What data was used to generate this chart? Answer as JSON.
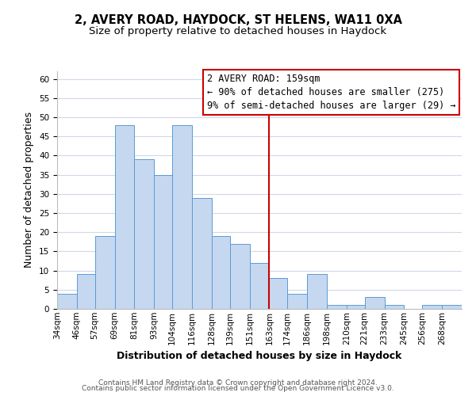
{
  "title_line1": "2, AVERY ROAD, HAYDOCK, ST HELENS, WA11 0XA",
  "title_line2": "Size of property relative to detached houses in Haydock",
  "xlabel": "Distribution of detached houses by size in Haydock",
  "ylabel": "Number of detached properties",
  "bar_edges": [
    34,
    46,
    57,
    69,
    81,
    93,
    104,
    116,
    128,
    139,
    151,
    163,
    174,
    186,
    198,
    210,
    221,
    233,
    245,
    256,
    268
  ],
  "bar_heights": [
    4,
    9,
    19,
    48,
    39,
    35,
    48,
    29,
    19,
    17,
    12,
    8,
    4,
    9,
    1,
    1,
    3,
    1,
    0,
    1,
    1
  ],
  "bar_labels": [
    "34sqm",
    "46sqm",
    "57sqm",
    "69sqm",
    "81sqm",
    "93sqm",
    "104sqm",
    "116sqm",
    "128sqm",
    "139sqm",
    "151sqm",
    "163sqm",
    "174sqm",
    "186sqm",
    "198sqm",
    "210sqm",
    "221sqm",
    "233sqm",
    "245sqm",
    "256sqm",
    "268sqm"
  ],
  "bar_color": "#c5d8f0",
  "bar_edge_color": "#5b9bd5",
  "vline_x": 163,
  "vline_color": "#cc0000",
  "ylim": [
    0,
    62
  ],
  "yticks": [
    0,
    5,
    10,
    15,
    20,
    25,
    30,
    35,
    40,
    45,
    50,
    55,
    60
  ],
  "annotation_title": "2 AVERY ROAD: 159sqm",
  "annotation_line1": "← 90% of detached houses are smaller (275)",
  "annotation_line2": "9% of semi-detached houses are larger (29) →",
  "annotation_box_color": "#cc0000",
  "footer_line1": "Contains HM Land Registry data © Crown copyright and database right 2024.",
  "footer_line2": "Contains public sector information licensed under the Open Government Licence v3.0.",
  "background_color": "#ffffff",
  "grid_color": "#d0d8e8",
  "title_fontsize": 10.5,
  "subtitle_fontsize": 9.5,
  "axis_label_fontsize": 9,
  "tick_fontsize": 7.5,
  "annotation_fontsize": 8.5,
  "footer_fontsize": 6.5
}
